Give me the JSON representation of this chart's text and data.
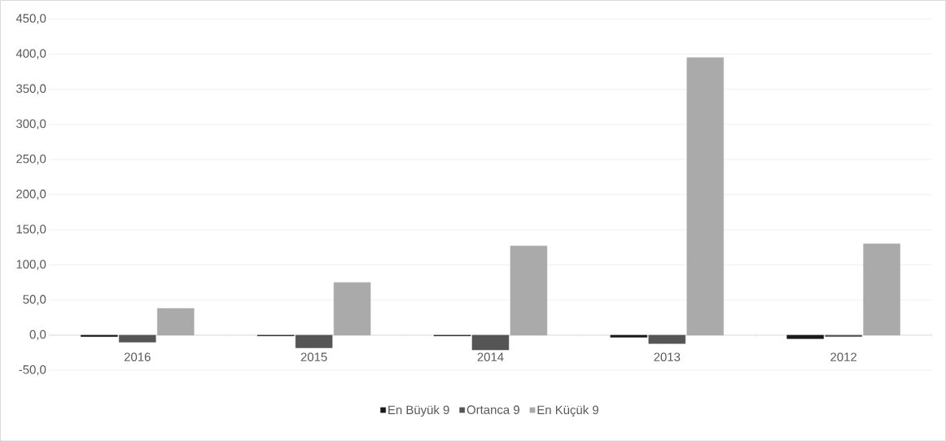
{
  "chart_data": {
    "type": "bar",
    "categories": [
      "2016",
      "2015",
      "2014",
      "2013",
      "2012"
    ],
    "series": [
      {
        "name": "En Büyük 9",
        "color": "#1a1a1a",
        "values": [
          -2,
          -1,
          -1,
          -3,
          -5
        ]
      },
      {
        "name": "Ortanca 9",
        "color": "#555555",
        "values": [
          -10,
          -18,
          -21,
          -12,
          -2
        ]
      },
      {
        "name": "En Küçük 9",
        "color": "#aaaaaa",
        "values": [
          38,
          75,
          127,
          395,
          130
        ]
      }
    ],
    "ylim": [
      -50,
      450
    ],
    "yticks": [
      {
        "value": -50,
        "label": "-50,0"
      },
      {
        "value": 0,
        "label": "0,0"
      },
      {
        "value": 50,
        "label": "50,0"
      },
      {
        "value": 100,
        "label": "100,0"
      },
      {
        "value": 150,
        "label": "150,0"
      },
      {
        "value": 200,
        "label": "200,0"
      },
      {
        "value": 250,
        "label": "250,0"
      },
      {
        "value": 300,
        "label": "300,0"
      },
      {
        "value": 350,
        "label": "350,0"
      },
      {
        "value": 400,
        "label": "400,0"
      },
      {
        "value": 450,
        "label": "450,0"
      }
    ],
    "grid": "y",
    "legend": "bottom"
  }
}
